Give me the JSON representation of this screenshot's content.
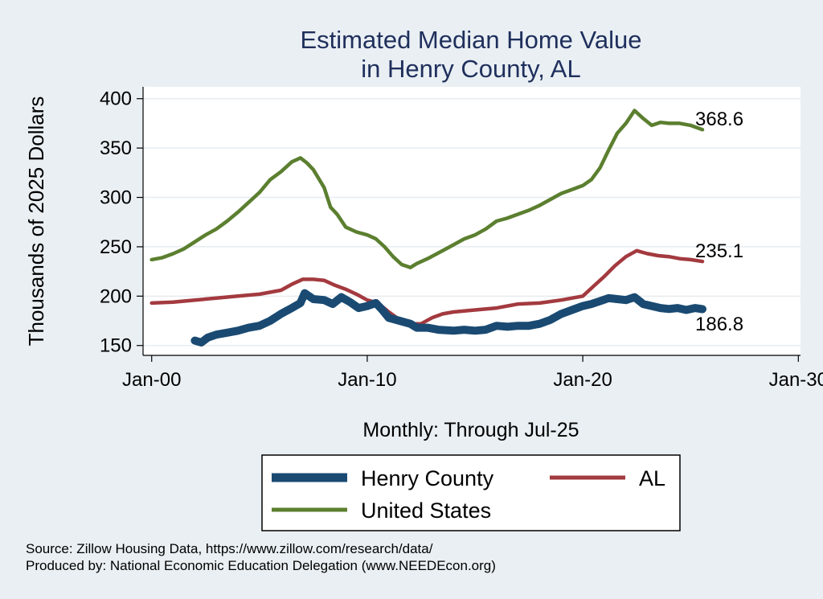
{
  "chart_data": {
    "type": "line",
    "title": [
      "Estimated Median Home Value",
      "in Henry County, AL"
    ],
    "ylabel": "Thousands of 2025 Dollars",
    "xlabel": "Monthly: Through Jul-25",
    "ylim": [
      140,
      412
    ],
    "xlim": [
      1999.6,
      2030.1
    ],
    "yticks": [
      150,
      200,
      250,
      300,
      350,
      400
    ],
    "xticks": [
      {
        "value": 2000,
        "label": "Jan-00"
      },
      {
        "value": 2010,
        "label": "Jan-10"
      },
      {
        "value": 2020,
        "label": "Jan-20"
      },
      {
        "value": 2030,
        "label": "Jan-30"
      }
    ],
    "series": [
      {
        "name": "Henry County",
        "color": "#1a4a72",
        "end_label": "186.8",
        "x": [
          2002.0,
          2002.3,
          2002.6,
          2003.0,
          2003.5,
          2004.0,
          2004.5,
          2005.0,
          2005.5,
          2006.0,
          2006.5,
          2006.9,
          2007.1,
          2007.5,
          2008.0,
          2008.4,
          2008.8,
          2009.2,
          2009.6,
          2010.0,
          2010.4,
          2010.7,
          2011.0,
          2011.5,
          2012.0,
          2012.3,
          2012.8,
          2013.3,
          2014.0,
          2014.5,
          2015.0,
          2015.5,
          2016.0,
          2016.5,
          2017.0,
          2017.5,
          2018.0,
          2018.5,
          2019.0,
          2019.5,
          2020.0,
          2020.4,
          2020.8,
          2021.2,
          2021.6,
          2022.0,
          2022.4,
          2022.8,
          2023.2,
          2023.6,
          2024.0,
          2024.4,
          2024.8,
          2025.2,
          2025.55
        ],
        "values": [
          155,
          153,
          158,
          161,
          163,
          165,
          168,
          170,
          175,
          182,
          188,
          193,
          203,
          197,
          196,
          192,
          199,
          194,
          188,
          190,
          193,
          186,
          178,
          175,
          172,
          168,
          168,
          166,
          165,
          166,
          165,
          166,
          170,
          169,
          170,
          170,
          172,
          176,
          182,
          186,
          190,
          192,
          195,
          198,
          197,
          196,
          199,
          192,
          190,
          188,
          187,
          188,
          186,
          188,
          186.8
        ]
      },
      {
        "name": "AL",
        "color": "#a33a3f",
        "end_label": "235.1",
        "x": [
          2000.0,
          2001.0,
          2002.0,
          2003.0,
          2004.0,
          2005.0,
          2006.0,
          2006.5,
          2007.0,
          2007.5,
          2008.0,
          2008.5,
          2009.0,
          2009.5,
          2010.0,
          2010.5,
          2011.0,
          2011.5,
          2012.0,
          2012.5,
          2013.0,
          2013.5,
          2014.0,
          2015.0,
          2016.0,
          2017.0,
          2018.0,
          2019.0,
          2020.0,
          2020.5,
          2021.0,
          2021.5,
          2022.0,
          2022.5,
          2023.0,
          2023.5,
          2024.0,
          2024.5,
          2025.0,
          2025.55
        ],
        "values": [
          193,
          194,
          196,
          198,
          200,
          202,
          206,
          212,
          217,
          217,
          216,
          211,
          207,
          202,
          196,
          193,
          184,
          176,
          172,
          172,
          178,
          182,
          184,
          186,
          188,
          192,
          193,
          196,
          200,
          210,
          220,
          231,
          240,
          246,
          243,
          241,
          240,
          238,
          237,
          235.1
        ]
      },
      {
        "name": "United States",
        "color": "#5b7f2f",
        "end_label": "368.6",
        "x": [
          2000.0,
          2000.5,
          2001.0,
          2001.5,
          2002.0,
          2002.5,
          2003.0,
          2003.5,
          2004.0,
          2004.5,
          2005.0,
          2005.5,
          2006.0,
          2006.5,
          2006.9,
          2007.2,
          2007.5,
          2008.0,
          2008.3,
          2008.6,
          2009.0,
          2009.5,
          2010.0,
          2010.4,
          2010.8,
          2011.2,
          2011.6,
          2012.0,
          2012.3,
          2012.8,
          2013.5,
          2014.0,
          2014.5,
          2015.0,
          2015.5,
          2016.0,
          2016.5,
          2017.0,
          2017.5,
          2018.0,
          2018.5,
          2019.0,
          2019.5,
          2020.0,
          2020.4,
          2020.8,
          2021.2,
          2021.6,
          2022.0,
          2022.4,
          2022.8,
          2023.2,
          2023.6,
          2024.0,
          2024.5,
          2025.0,
          2025.55
        ],
        "values": [
          237,
          239,
          243,
          248,
          255,
          262,
          268,
          276,
          285,
          295,
          305,
          318,
          326,
          336,
          340,
          335,
          328,
          310,
          290,
          283,
          270,
          265,
          262,
          258,
          250,
          240,
          232,
          229,
          233,
          238,
          246,
          252,
          258,
          262,
          268,
          276,
          279,
          283,
          287,
          292,
          298,
          304,
          308,
          312,
          318,
          330,
          348,
          365,
          375,
          388,
          380,
          373,
          376,
          375,
          375,
          373,
          368.6
        ]
      }
    ],
    "legend": [
      "Henry County",
      "AL",
      "United States"
    ]
  },
  "source": "Source: Zillow Housing Data, https://www.zillow.com/research/data/",
  "produced_by": "Produced by: National Economic Education Delegation (www.NEEDEcon.org)"
}
